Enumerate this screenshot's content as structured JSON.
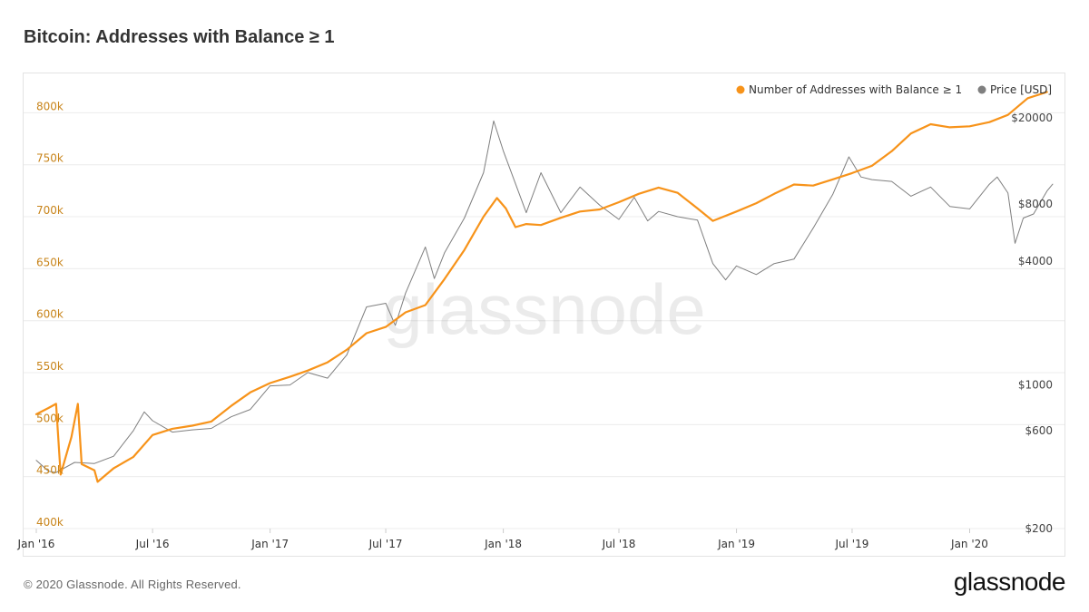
{
  "header": {
    "title": "Bitcoin: Addresses with Balance ≥ 1"
  },
  "footer": {
    "copyright": "© 2020 Glassnode. All Rights Reserved.",
    "logo_text": "glassnode"
  },
  "watermark": "glassnode",
  "colors": {
    "addresses": "#f7931a",
    "price": "#7f7f7f",
    "left_axis": "#c8841a",
    "right_axis": "#444444"
  },
  "chart_data": {
    "type": "line",
    "title": "Bitcoin: Addresses with Balance ≥ 1",
    "x_ticks": [
      "Jan '16",
      "Jul '16",
      "Jan '17",
      "Jul '17",
      "Jan '18",
      "Jul '18",
      "Jan '19",
      "Jul '19",
      "Jan '20"
    ],
    "left_axis": {
      "ticks": [
        "400k",
        "450k",
        "500k",
        "550k",
        "600k",
        "650k",
        "700k",
        "750k",
        "800k"
      ],
      "range": [
        400000,
        830000
      ]
    },
    "right_axis": {
      "scale": "log",
      "ticks": [
        "$200",
        "$600",
        "$1000",
        "$4000",
        "$8000",
        "$20000"
      ],
      "range": [
        200,
        30000
      ]
    },
    "legend": {
      "position": "top-right"
    },
    "series": [
      {
        "name": "Number of Addresses with Balance ≥ 1",
        "axis": "left",
        "color": "#f7931a",
        "points": [
          [
            "2016-01-01",
            510000
          ],
          [
            "2016-01-20",
            516000
          ],
          [
            "2016-02-01",
            520000
          ],
          [
            "2016-02-08",
            452000
          ],
          [
            "2016-02-25",
            488000
          ],
          [
            "2016-03-06",
            520000
          ],
          [
            "2016-03-12",
            462000
          ],
          [
            "2016-04-01",
            456000
          ],
          [
            "2016-04-06",
            445000
          ],
          [
            "2016-05-01",
            458000
          ],
          [
            "2016-06-01",
            469000
          ],
          [
            "2016-07-01",
            490000
          ],
          [
            "2016-08-01",
            496000
          ],
          [
            "2016-09-01",
            499000
          ],
          [
            "2016-10-01",
            503000
          ],
          [
            "2016-11-01",
            518000
          ],
          [
            "2016-12-01",
            531000
          ],
          [
            "2017-01-01",
            540000
          ],
          [
            "2017-02-01",
            546000
          ],
          [
            "2017-03-01",
            552000
          ],
          [
            "2017-04-01",
            560000
          ],
          [
            "2017-05-01",
            572000
          ],
          [
            "2017-06-01",
            588000
          ],
          [
            "2017-07-01",
            594000
          ],
          [
            "2017-08-01",
            608000
          ],
          [
            "2017-09-01",
            615000
          ],
          [
            "2017-10-01",
            640000
          ],
          [
            "2017-11-01",
            668000
          ],
          [
            "2017-12-01",
            700000
          ],
          [
            "2017-12-22",
            718000
          ],
          [
            "2018-01-05",
            708000
          ],
          [
            "2018-01-20",
            690000
          ],
          [
            "2018-02-06",
            693000
          ],
          [
            "2018-03-01",
            692000
          ],
          [
            "2018-04-01",
            699000
          ],
          [
            "2018-05-01",
            705000
          ],
          [
            "2018-06-01",
            707000
          ],
          [
            "2018-07-01",
            714000
          ],
          [
            "2018-08-01",
            722000
          ],
          [
            "2018-09-01",
            728000
          ],
          [
            "2018-10-01",
            723000
          ],
          [
            "2018-11-01",
            708000
          ],
          [
            "2018-11-25",
            696000
          ],
          [
            "2019-01-01",
            705000
          ],
          [
            "2019-02-01",
            713000
          ],
          [
            "2019-03-01",
            722000
          ],
          [
            "2019-04-01",
            731000
          ],
          [
            "2019-05-01",
            730000
          ],
          [
            "2019-06-01",
            736000
          ],
          [
            "2019-07-01",
            742000
          ],
          [
            "2019-08-01",
            749000
          ],
          [
            "2019-09-01",
            763000
          ],
          [
            "2019-10-01",
            780000
          ],
          [
            "2019-11-01",
            789000
          ],
          [
            "2019-12-01",
            786000
          ],
          [
            "2020-01-01",
            787000
          ],
          [
            "2020-02-01",
            791000
          ],
          [
            "2020-03-01",
            798000
          ],
          [
            "2020-04-01",
            814000
          ],
          [
            "2020-05-01",
            820000
          ]
        ]
      },
      {
        "name": "Price [USD]",
        "axis": "right",
        "color": "#7f7f7f",
        "points": [
          [
            "2016-01-01",
            430
          ],
          [
            "2016-01-20",
            380
          ],
          [
            "2016-02-01",
            375
          ],
          [
            "2016-03-01",
            420
          ],
          [
            "2016-04-01",
            415
          ],
          [
            "2016-05-01",
            450
          ],
          [
            "2016-06-01",
            600
          ],
          [
            "2016-06-18",
            740
          ],
          [
            "2016-07-01",
            670
          ],
          [
            "2016-08-01",
            590
          ],
          [
            "2016-09-01",
            605
          ],
          [
            "2016-10-01",
            615
          ],
          [
            "2016-11-01",
            700
          ],
          [
            "2016-12-01",
            760
          ],
          [
            "2017-01-01",
            990
          ],
          [
            "2017-02-01",
            1000
          ],
          [
            "2017-03-01",
            1150
          ],
          [
            "2017-04-01",
            1080
          ],
          [
            "2017-05-01",
            1400
          ],
          [
            "2017-06-01",
            2400
          ],
          [
            "2017-07-01",
            2500
          ],
          [
            "2017-07-16",
            1950
          ],
          [
            "2017-08-01",
            2800
          ],
          [
            "2017-09-01",
            4700
          ],
          [
            "2017-09-15",
            3300
          ],
          [
            "2017-10-01",
            4400
          ],
          [
            "2017-11-01",
            6500
          ],
          [
            "2017-12-01",
            10800
          ],
          [
            "2017-12-17",
            19300
          ],
          [
            "2018-01-01",
            13800
          ],
          [
            "2018-02-06",
            6900
          ],
          [
            "2018-03-01",
            10800
          ],
          [
            "2018-04-01",
            6900
          ],
          [
            "2018-05-01",
            9200
          ],
          [
            "2018-06-01",
            7500
          ],
          [
            "2018-07-01",
            6400
          ],
          [
            "2018-07-25",
            8200
          ],
          [
            "2018-08-15",
            6300
          ],
          [
            "2018-09-01",
            7000
          ],
          [
            "2018-10-01",
            6600
          ],
          [
            "2018-11-01",
            6350
          ],
          [
            "2018-11-25",
            3900
          ],
          [
            "2018-12-15",
            3250
          ],
          [
            "2019-01-01",
            3800
          ],
          [
            "2019-02-01",
            3450
          ],
          [
            "2019-03-01",
            3900
          ],
          [
            "2019-04-01",
            4100
          ],
          [
            "2019-05-01",
            5800
          ],
          [
            "2019-06-01",
            8500
          ],
          [
            "2019-06-26",
            12900
          ],
          [
            "2019-07-15",
            10300
          ],
          [
            "2019-08-01",
            10000
          ],
          [
            "2019-09-01",
            9800
          ],
          [
            "2019-10-01",
            8300
          ],
          [
            "2019-11-01",
            9200
          ],
          [
            "2019-12-01",
            7400
          ],
          [
            "2020-01-01",
            7200
          ],
          [
            "2020-02-01",
            9500
          ],
          [
            "2020-02-13",
            10300
          ],
          [
            "2020-03-01",
            8600
          ],
          [
            "2020-03-12",
            4900
          ],
          [
            "2020-03-25",
            6500
          ],
          [
            "2020-04-10",
            6800
          ],
          [
            "2020-05-01",
            8800
          ],
          [
            "2020-05-10",
            9500
          ]
        ]
      }
    ]
  }
}
